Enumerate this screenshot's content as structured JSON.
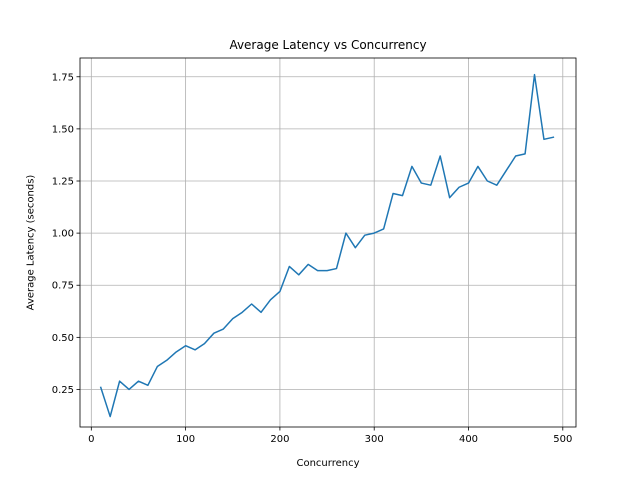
{
  "chart_data": {
    "type": "line",
    "title": "Average Latency vs Concurrency",
    "xlabel": "Concurrency",
    "ylabel": "Average Latency (seconds)",
    "xlim": [
      -12,
      514
    ],
    "ylim": [
      0.07,
      1.84
    ],
    "xticks": [
      0,
      100,
      200,
      300,
      400,
      500
    ],
    "xtick_labels": [
      "0",
      "100",
      "200",
      "300",
      "400",
      "500"
    ],
    "yticks": [
      0.25,
      0.5,
      0.75,
      1.0,
      1.25,
      1.5,
      1.75
    ],
    "ytick_labels": [
      "0.25",
      "0.50",
      "0.75",
      "1.00",
      "1.25",
      "1.50",
      "1.75"
    ],
    "grid": true,
    "legend": "none",
    "series": [
      {
        "color": "#1f77b4",
        "x": [
          10,
          20,
          30,
          40,
          50,
          60,
          70,
          80,
          90,
          100,
          110,
          120,
          130,
          140,
          150,
          160,
          170,
          180,
          190,
          200,
          210,
          220,
          230,
          240,
          250,
          260,
          270,
          280,
          290,
          300,
          310,
          320,
          330,
          340,
          350,
          360,
          370,
          380,
          390,
          400,
          410,
          420,
          430,
          440,
          450,
          460,
          470,
          480,
          490
        ],
        "y": [
          0.26,
          0.12,
          0.29,
          0.25,
          0.29,
          0.27,
          0.36,
          0.39,
          0.43,
          0.46,
          0.44,
          0.47,
          0.52,
          0.54,
          0.59,
          0.62,
          0.66,
          0.62,
          0.68,
          0.72,
          0.84,
          0.8,
          0.85,
          0.82,
          0.82,
          0.83,
          1.0,
          0.93,
          0.99,
          1.0,
          1.02,
          1.19,
          1.18,
          1.32,
          1.24,
          1.23,
          1.37,
          1.17,
          1.22,
          1.24,
          1.32,
          1.25,
          1.23,
          1.3,
          1.37,
          1.38,
          1.76,
          1.45,
          1.46
        ]
      }
    ]
  }
}
